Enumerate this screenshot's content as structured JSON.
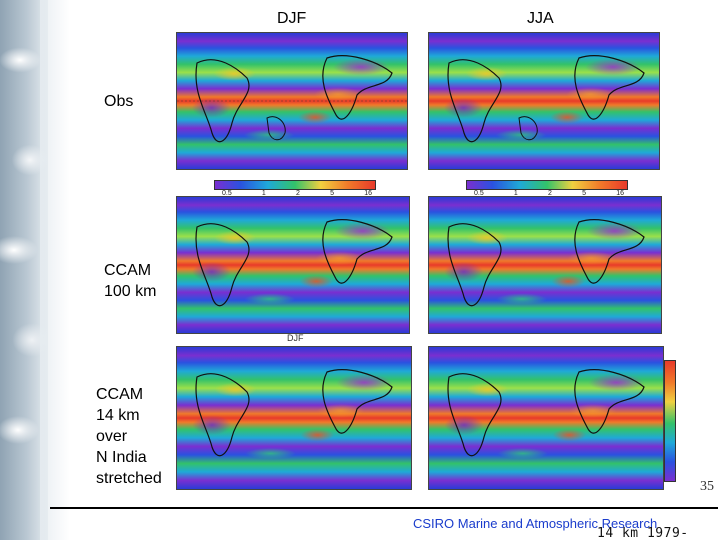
{
  "columns": {
    "left": "DJF",
    "right": "JJA"
  },
  "rows": {
    "obs": "Obs",
    "ccam100": [
      "CCAM",
      "100 km"
    ],
    "ccam14": [
      "CCAM",
      "14 km",
      "over",
      "N  India",
      "stretched"
    ]
  },
  "colorbar_ticks": [
    "0.5",
    "1",
    "2",
    "5",
    "16"
  ],
  "middle_map_caption": "DJF",
  "footer": "CSIRO Marine and Atmospheric Research",
  "page_number": "35",
  "stamp": "14 km 1979-"
}
